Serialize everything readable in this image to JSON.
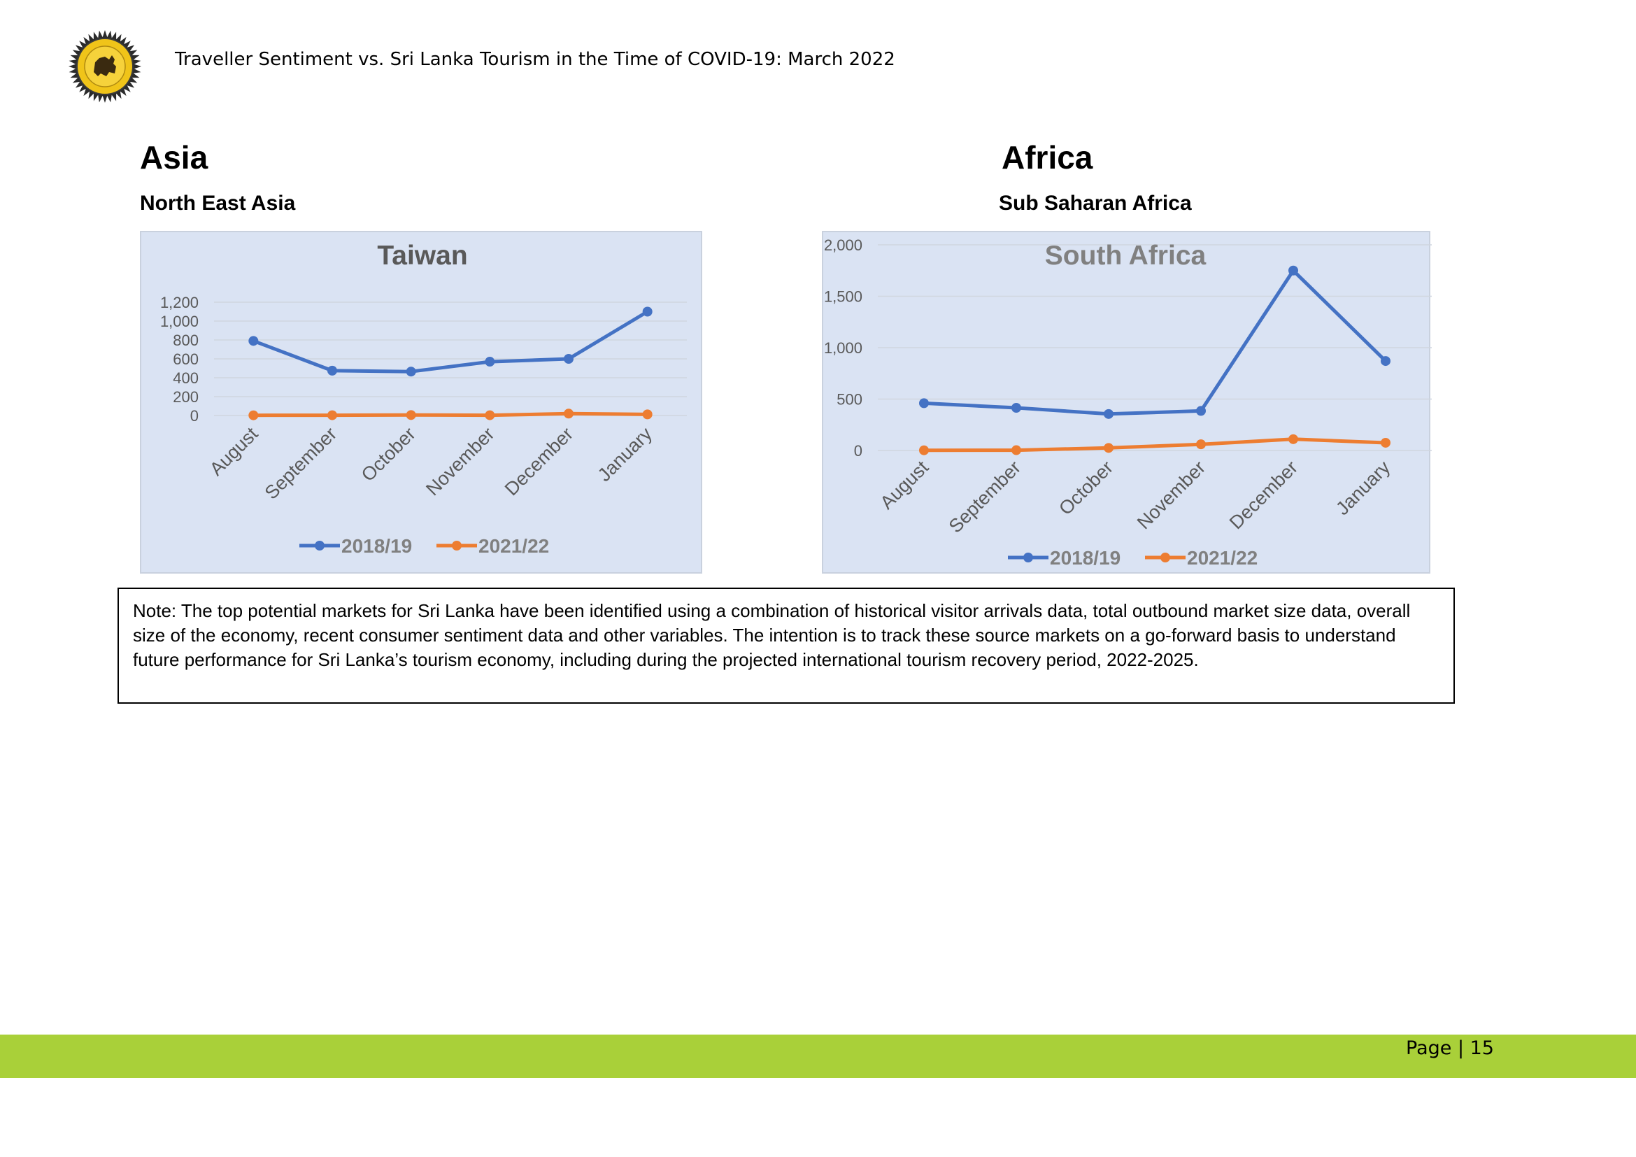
{
  "header": {
    "doc_title": "Traveller Sentiment vs. Sri Lanka Tourism in the Time of COVID-19: March 2022",
    "logo_icon": "sri-lanka-tourism-seal-icon"
  },
  "left_section": {
    "region": "Asia",
    "subregion": "North East Asia"
  },
  "right_section": {
    "region": "Africa",
    "subregion": "Sub Saharan Africa"
  },
  "chart_data": [
    {
      "type": "line",
      "title": "Taiwan",
      "categories": [
        "August",
        "September",
        "October",
        "November",
        "December",
        "January"
      ],
      "series": [
        {
          "name": "2018/19",
          "values": [
            790,
            475,
            465,
            570,
            600,
            1100
          ],
          "color": "#4472c4"
        },
        {
          "name": "2021/22",
          "values": [
            2,
            3,
            5,
            3,
            20,
            12
          ],
          "color": "#ed7d31"
        }
      ],
      "ylim": [
        0,
        1200
      ],
      "yticks": [
        0,
        200,
        400,
        600,
        800,
        1000,
        1200
      ],
      "ytick_labels": [
        "0",
        "200",
        "400",
        "600",
        "800",
        "1,000",
        "1,200"
      ],
      "grid": true,
      "legend": "bottom",
      "xlabel": "",
      "ylabel": ""
    },
    {
      "type": "line",
      "title": "South Africa",
      "categories": [
        "August",
        "September",
        "October",
        "November",
        "December",
        "January"
      ],
      "series": [
        {
          "name": "2018/19",
          "values": [
            460,
            415,
            355,
            385,
            1750,
            870
          ],
          "color": "#4472c4"
        },
        {
          "name": "2021/22",
          "values": [
            2,
            3,
            25,
            60,
            110,
            75
          ],
          "color": "#ed7d31"
        }
      ],
      "ylim": [
        0,
        2000
      ],
      "yticks": [
        0,
        500,
        1000,
        1500,
        2000
      ],
      "ytick_labels": [
        "0",
        "500",
        "1,000",
        "1,500",
        "2,000"
      ],
      "grid": true,
      "legend": "bottom",
      "xlabel": "",
      "ylabel": ""
    }
  ],
  "note": {
    "text": "Note: The top potential markets for Sri Lanka have been identified using a combination of historical visitor arrivals data, total outbound market size data, overall size of the economy, recent consumer sentiment data and other variables. The intention is to track these source markets on a go-forward basis to understand future performance for Sri Lanka’s tourism economy, including during the projected international tourism recovery period, 2022-2025."
  },
  "footer": {
    "page_label": "Page | 15"
  }
}
